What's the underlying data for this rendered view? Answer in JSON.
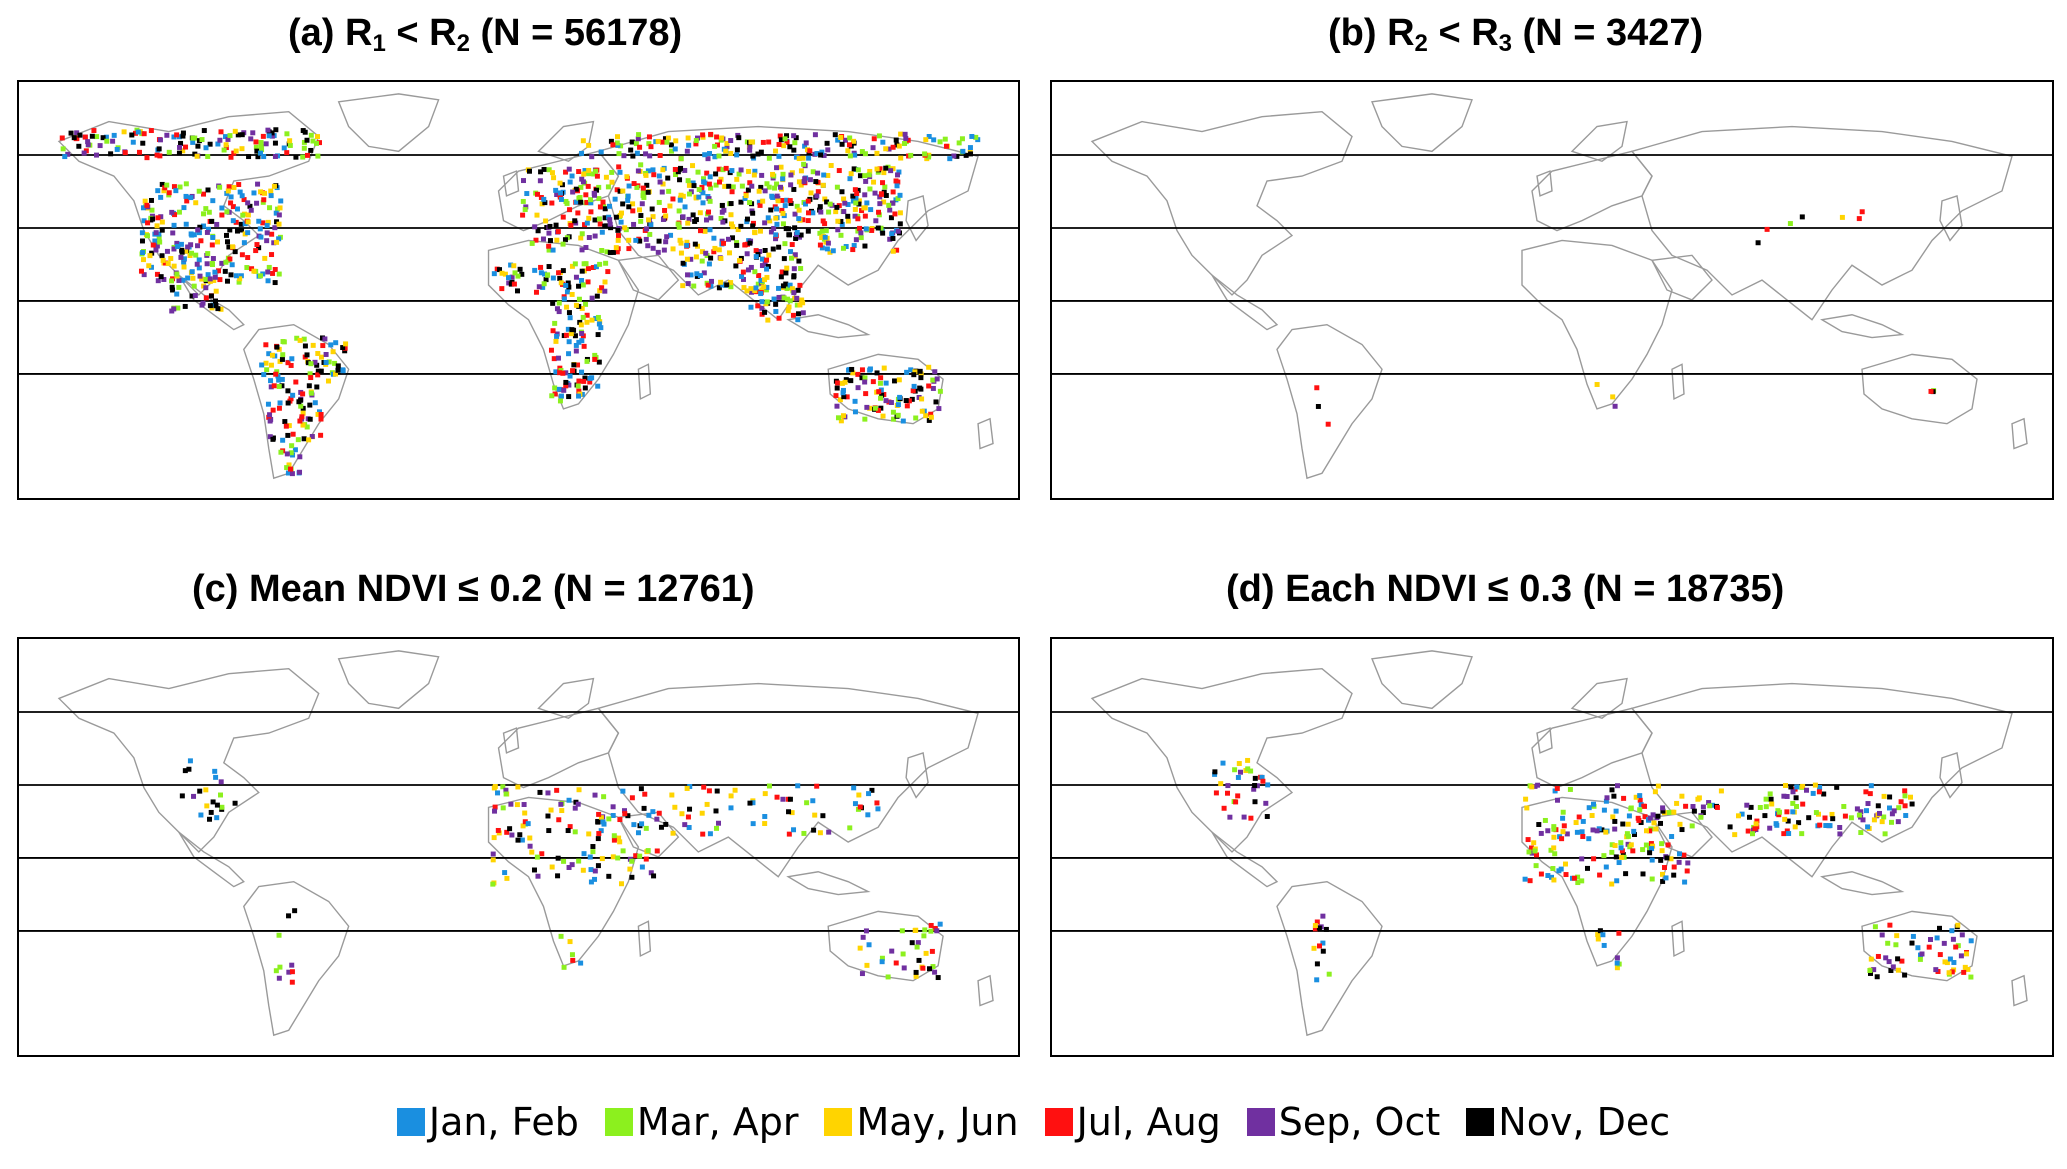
{
  "panels": [
    {
      "title_prefix": "(a) R",
      "title_sub1": "1",
      "title_mid": " < R",
      "title_sub2": "2",
      "title_suffix": " (N = 56178)",
      "density": "high",
      "regions": [
        "north_america",
        "south_america",
        "europe_asia",
        "africa",
        "australia",
        "arctic"
      ]
    },
    {
      "title_prefix": "(b) R",
      "title_sub1": "2",
      "title_mid": " < R",
      "title_sub2": "3",
      "title_suffix": " (Ν = 3427)",
      "density": "very_low",
      "regions": [
        "central_asia",
        "andes",
        "southern_africa",
        "australia_sparse"
      ]
    },
    {
      "title_text": "(c) Mean NDVI ≤ 0.2 (N = 12761)",
      "density": "low",
      "regions": [
        "western_us",
        "mideast_asia_belt",
        "sahara",
        "andes",
        "southern_africa",
        "australia"
      ]
    },
    {
      "title_text": "(d) Each NDVI ≤ 0.3 (N = 18735)",
      "density": "medium",
      "regions": [
        "western_us",
        "mideast_asia_belt",
        "sahara",
        "andes",
        "southern_africa",
        "australia"
      ]
    }
  ],
  "legend": [
    {
      "label": "Jan, Feb",
      "color": "#1a8fe0"
    },
    {
      "label": "Mar, Apr",
      "color": "#8cf01e"
    },
    {
      "label": "May, Jun",
      "color": "#ffd400"
    },
    {
      "label": "Jul, Aug",
      "color": "#ff1010"
    },
    {
      "label": "Sep, Oct",
      "color": "#7030a0"
    },
    {
      "label": "Nov, Dec",
      "color": "#000000"
    }
  ],
  "latitude_lines_per_map": 4
}
